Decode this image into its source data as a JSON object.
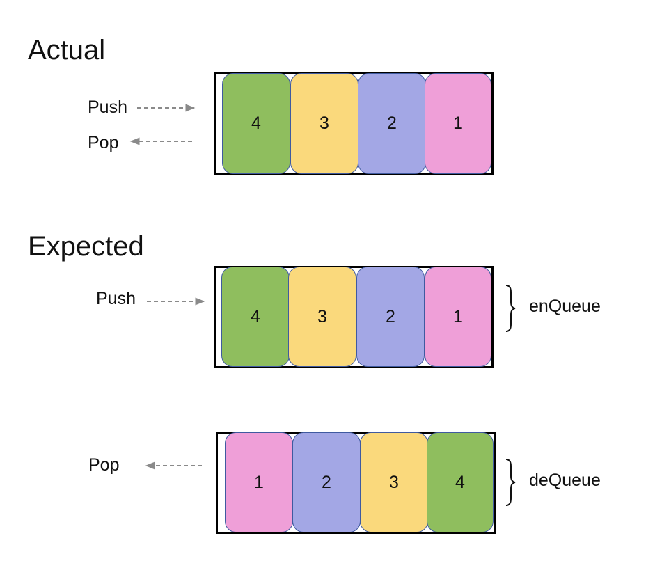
{
  "colors": {
    "green": "#8fbe5e",
    "yellow": "#fad97c",
    "lavender": "#a3a7e5",
    "pink": "#ef9fd8",
    "arrow": "#8a8a8a"
  },
  "actual": {
    "title": "Actual",
    "push_label": "Push",
    "pop_label": "Pop",
    "cells": [
      {
        "value": "4",
        "color": "green"
      },
      {
        "value": "3",
        "color": "yellow"
      },
      {
        "value": "2",
        "color": "lavender"
      },
      {
        "value": "1",
        "color": "pink"
      }
    ]
  },
  "expected": {
    "title": "Expected",
    "enqueue": {
      "push_label": "Push",
      "brace_label": "enQueue",
      "cells": [
        {
          "value": "4",
          "color": "green"
        },
        {
          "value": "3",
          "color": "yellow"
        },
        {
          "value": "2",
          "color": "lavender"
        },
        {
          "value": "1",
          "color": "pink"
        }
      ]
    },
    "dequeue": {
      "pop_label": "Pop",
      "brace_label": "deQueue",
      "cells": [
        {
          "value": "1",
          "color": "pink"
        },
        {
          "value": "2",
          "color": "lavender"
        },
        {
          "value": "3",
          "color": "yellow"
        },
        {
          "value": "4",
          "color": "green"
        }
      ]
    }
  }
}
